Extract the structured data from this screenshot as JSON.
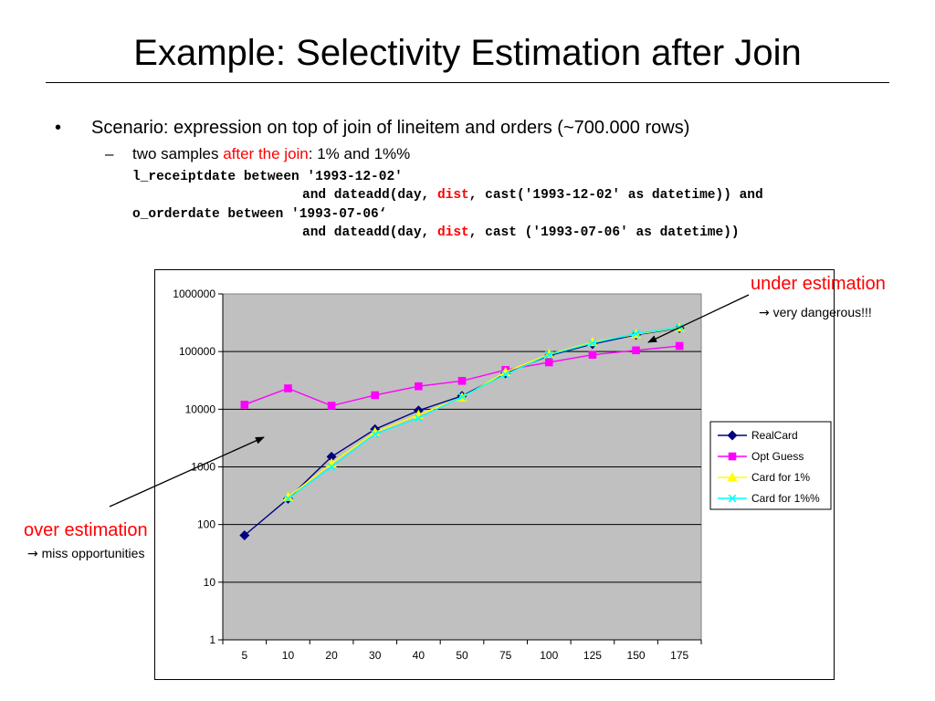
{
  "slide": {
    "title": "Example: Selectivity Estimation after Join",
    "bullet_symbol": "•",
    "bullet": "Scenario: expression on top of join of lineitem and orders (~700.000 rows)",
    "sub_dash": "–",
    "sub_prefix": "two samples ",
    "sub_highlight": "after the join",
    "sub_suffix": ": 1% and 1%%",
    "code": {
      "line1": "l_receiptdate between '1993-12-02'",
      "line2_prefix": "and dateadd(day, ",
      "line2_keyword": "dist",
      "line2_suffix": ", cast('1993-12-02' as datetime)) and",
      "line3": "o_orderdate between '1993-07-06‘",
      "line4_prefix": "and dateadd(day, ",
      "line4_keyword": "dist",
      "line4_suffix": ", cast ('1993-07-06' as datetime))"
    }
  },
  "annotations": {
    "under_title": "under estimation",
    "under_arrow": "→",
    "under_note": "very dangerous!!!",
    "over_title": "over estimation",
    "over_arrow": "→",
    "over_note": "miss opportunities"
  },
  "colors": {
    "accent_red": "#ff0000",
    "plot_background": "#c0c0c0",
    "real_card": "#000080",
    "opt_guess": "#ff00ff",
    "card_1pct": "#ffff00",
    "card_1pctpct": "#00ffff"
  },
  "chart_data": {
    "type": "line",
    "categories": [
      "5",
      "10",
      "20",
      "30",
      "40",
      "50",
      "75",
      "100",
      "125",
      "150",
      "175"
    ],
    "y_scale": "log",
    "ylim": [
      1,
      1000000
    ],
    "y_ticks": [
      "1",
      "10",
      "100",
      "1000",
      "10000",
      "100000",
      "1000000"
    ],
    "grid": "horizontal major gridlines",
    "legend_position": "right",
    "series": [
      {
        "name": "RealCard",
        "color": "#000080",
        "marker": "diamond",
        "values": [
          65,
          280,
          1500,
          4500,
          9500,
          17000,
          42000,
          85000,
          135000,
          195000,
          255000
        ]
      },
      {
        "name": "Opt Guess",
        "color": "#ff00ff",
        "marker": "square",
        "values": [
          12000,
          23000,
          11500,
          17500,
          25000,
          31000,
          48000,
          65000,
          88000,
          105000,
          125000
        ]
      },
      {
        "name": "Card for 1%",
        "color": "#ffff00",
        "marker": "triangle",
        "values": [
          null,
          300,
          1150,
          4000,
          8000,
          16000,
          44000,
          90000,
          145000,
          200000,
          260000
        ]
      },
      {
        "name": "Card for 1%%",
        "color": "#00ffff",
        "marker": "x",
        "values": [
          null,
          280,
          1000,
          3700,
          7000,
          16500,
          40000,
          88000,
          140000,
          205000,
          265000
        ]
      }
    ]
  }
}
